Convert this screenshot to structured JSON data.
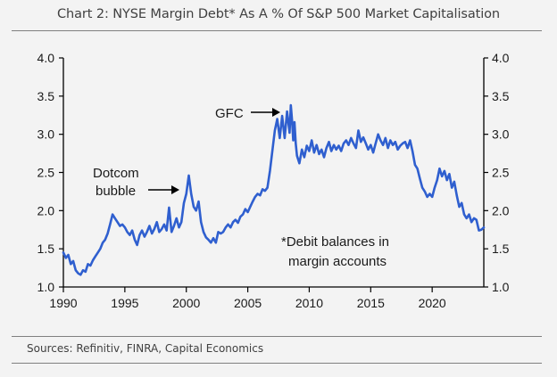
{
  "title": "Chart 2: NYSE Margin Debt* As A % Of S&P 500 Market Capitalisation",
  "source": "Sources: Refinitiv, FINRA, Capital Economics",
  "colors": {
    "series": "#2f5fcf",
    "axis": "#000000",
    "background": "#f3f3f3"
  },
  "chart_data": {
    "type": "line",
    "title": "Chart 2: NYSE Margin Debt* As A % Of S&P 500 Market Capitalisation",
    "xlabel": "",
    "ylabel": "",
    "xlim": [
      1990,
      2024.2
    ],
    "ylim": [
      1.0,
      4.0
    ],
    "x_ticks": [
      1990,
      1995,
      2000,
      2005,
      2010,
      2015,
      2020
    ],
    "y_ticks": [
      "1.0",
      "1.5",
      "2.0",
      "2.5",
      "3.0",
      "3.5",
      "4.0"
    ],
    "grid": false,
    "legend": "none",
    "annotations": [
      {
        "id": "gfc",
        "lines": [
          "GFC"
        ],
        "arrow_to_x": 2008.3,
        "arrow_to_y": 3.38
      },
      {
        "id": "dotcom",
        "lines": [
          "Dotcom",
          "bubble"
        ],
        "arrow_to_x": 1999.8,
        "arrow_to_y": 2.32
      },
      {
        "id": "footnote",
        "lines": [
          "*Debit balances in",
          "margin accounts"
        ]
      }
    ],
    "series": [
      {
        "values": [
          [
            1990.0,
            1.45
          ],
          [
            1990.2,
            1.38
          ],
          [
            1990.4,
            1.42
          ],
          [
            1990.6,
            1.3
          ],
          [
            1990.8,
            1.34
          ],
          [
            1991.0,
            1.22
          ],
          [
            1991.2,
            1.18
          ],
          [
            1991.4,
            1.16
          ],
          [
            1991.6,
            1.22
          ],
          [
            1991.8,
            1.2
          ],
          [
            1992.0,
            1.3
          ],
          [
            1992.2,
            1.28
          ],
          [
            1992.4,
            1.35
          ],
          [
            1992.6,
            1.4
          ],
          [
            1992.8,
            1.45
          ],
          [
            1993.0,
            1.5
          ],
          [
            1993.2,
            1.58
          ],
          [
            1993.4,
            1.62
          ],
          [
            1993.6,
            1.7
          ],
          [
            1993.8,
            1.82
          ],
          [
            1994.0,
            1.95
          ],
          [
            1994.2,
            1.9
          ],
          [
            1994.4,
            1.85
          ],
          [
            1994.6,
            1.8
          ],
          [
            1994.8,
            1.82
          ],
          [
            1995.0,
            1.78
          ],
          [
            1995.2,
            1.72
          ],
          [
            1995.4,
            1.68
          ],
          [
            1995.6,
            1.74
          ],
          [
            1995.8,
            1.62
          ],
          [
            1996.0,
            1.55
          ],
          [
            1996.2,
            1.68
          ],
          [
            1996.4,
            1.74
          ],
          [
            1996.6,
            1.66
          ],
          [
            1996.8,
            1.72
          ],
          [
            1997.0,
            1.8
          ],
          [
            1997.2,
            1.7
          ],
          [
            1997.4,
            1.76
          ],
          [
            1997.6,
            1.85
          ],
          [
            1997.8,
            1.72
          ],
          [
            1998.0,
            1.76
          ],
          [
            1998.2,
            1.82
          ],
          [
            1998.4,
            1.74
          ],
          [
            1998.6,
            2.04
          ],
          [
            1998.8,
            1.72
          ],
          [
            1999.0,
            1.8
          ],
          [
            1999.2,
            1.9
          ],
          [
            1999.4,
            1.78
          ],
          [
            1999.6,
            1.85
          ],
          [
            1999.8,
            2.1
          ],
          [
            2000.0,
            2.22
          ],
          [
            2000.2,
            2.46
          ],
          [
            2000.4,
            2.22
          ],
          [
            2000.6,
            2.05
          ],
          [
            2000.8,
            2.0
          ],
          [
            2001.0,
            2.12
          ],
          [
            2001.2,
            1.85
          ],
          [
            2001.4,
            1.72
          ],
          [
            2001.6,
            1.65
          ],
          [
            2001.8,
            1.62
          ],
          [
            2002.0,
            1.58
          ],
          [
            2002.2,
            1.64
          ],
          [
            2002.4,
            1.58
          ],
          [
            2002.6,
            1.72
          ],
          [
            2002.8,
            1.7
          ],
          [
            2003.0,
            1.72
          ],
          [
            2003.2,
            1.78
          ],
          [
            2003.4,
            1.82
          ],
          [
            2003.6,
            1.78
          ],
          [
            2003.8,
            1.85
          ],
          [
            2004.0,
            1.88
          ],
          [
            2004.2,
            1.84
          ],
          [
            2004.4,
            1.92
          ],
          [
            2004.6,
            1.95
          ],
          [
            2004.8,
            2.02
          ],
          [
            2005.0,
            1.98
          ],
          [
            2005.2,
            2.05
          ],
          [
            2005.4,
            2.12
          ],
          [
            2005.6,
            2.18
          ],
          [
            2005.8,
            2.22
          ],
          [
            2006.0,
            2.2
          ],
          [
            2006.2,
            2.28
          ],
          [
            2006.4,
            2.26
          ],
          [
            2006.6,
            2.3
          ],
          [
            2006.8,
            2.52
          ],
          [
            2007.0,
            2.78
          ],
          [
            2007.2,
            3.05
          ],
          [
            2007.4,
            3.2
          ],
          [
            2007.6,
            2.95
          ],
          [
            2007.8,
            3.24
          ],
          [
            2008.0,
            2.95
          ],
          [
            2008.2,
            3.3
          ],
          [
            2008.4,
            3.02
          ],
          [
            2008.5,
            3.38
          ],
          [
            2008.6,
            3.18
          ],
          [
            2008.7,
            2.92
          ],
          [
            2008.8,
            3.16
          ],
          [
            2008.9,
            2.88
          ],
          [
            2009.0,
            2.72
          ],
          [
            2009.2,
            2.62
          ],
          [
            2009.4,
            2.8
          ],
          [
            2009.6,
            2.7
          ],
          [
            2009.8,
            2.85
          ],
          [
            2010.0,
            2.78
          ],
          [
            2010.2,
            2.92
          ],
          [
            2010.4,
            2.76
          ],
          [
            2010.6,
            2.86
          ],
          [
            2010.8,
            2.74
          ],
          [
            2011.0,
            2.8
          ],
          [
            2011.2,
            2.7
          ],
          [
            2011.4,
            2.82
          ],
          [
            2011.6,
            2.9
          ],
          [
            2011.8,
            2.78
          ],
          [
            2012.0,
            2.86
          ],
          [
            2012.2,
            2.8
          ],
          [
            2012.4,
            2.85
          ],
          [
            2012.6,
            2.78
          ],
          [
            2012.8,
            2.88
          ],
          [
            2013.0,
            2.92
          ],
          [
            2013.2,
            2.86
          ],
          [
            2013.4,
            2.95
          ],
          [
            2013.6,
            2.88
          ],
          [
            2013.8,
            2.82
          ],
          [
            2014.0,
            3.05
          ],
          [
            2014.2,
            2.9
          ],
          [
            2014.4,
            2.96
          ],
          [
            2014.6,
            2.88
          ],
          [
            2014.8,
            2.8
          ],
          [
            2015.0,
            2.86
          ],
          [
            2015.2,
            2.76
          ],
          [
            2015.4,
            2.88
          ],
          [
            2015.6,
            3.0
          ],
          [
            2015.8,
            2.92
          ],
          [
            2016.0,
            2.86
          ],
          [
            2016.2,
            2.95
          ],
          [
            2016.4,
            2.82
          ],
          [
            2016.6,
            2.92
          ],
          [
            2016.8,
            2.86
          ],
          [
            2017.0,
            2.9
          ],
          [
            2017.2,
            2.8
          ],
          [
            2017.4,
            2.85
          ],
          [
            2017.6,
            2.88
          ],
          [
            2017.8,
            2.9
          ],
          [
            2018.0,
            2.82
          ],
          [
            2018.2,
            2.92
          ],
          [
            2018.4,
            2.78
          ],
          [
            2018.6,
            2.6
          ],
          [
            2018.8,
            2.55
          ],
          [
            2019.0,
            2.42
          ],
          [
            2019.2,
            2.3
          ],
          [
            2019.4,
            2.25
          ],
          [
            2019.6,
            2.18
          ],
          [
            2019.8,
            2.22
          ],
          [
            2020.0,
            2.18
          ],
          [
            2020.2,
            2.3
          ],
          [
            2020.4,
            2.4
          ],
          [
            2020.6,
            2.55
          ],
          [
            2020.8,
            2.45
          ],
          [
            2021.0,
            2.52
          ],
          [
            2021.2,
            2.4
          ],
          [
            2021.4,
            2.48
          ],
          [
            2021.6,
            2.3
          ],
          [
            2021.8,
            2.38
          ],
          [
            2022.0,
            2.2
          ],
          [
            2022.2,
            2.05
          ],
          [
            2022.4,
            2.1
          ],
          [
            2022.6,
            1.95
          ],
          [
            2022.8,
            1.9
          ],
          [
            2023.0,
            1.95
          ],
          [
            2023.2,
            1.85
          ],
          [
            2023.4,
            1.9
          ],
          [
            2023.6,
            1.88
          ],
          [
            2023.8,
            1.74
          ],
          [
            2024.0,
            1.75
          ],
          [
            2024.2,
            1.78
          ]
        ]
      }
    ]
  }
}
